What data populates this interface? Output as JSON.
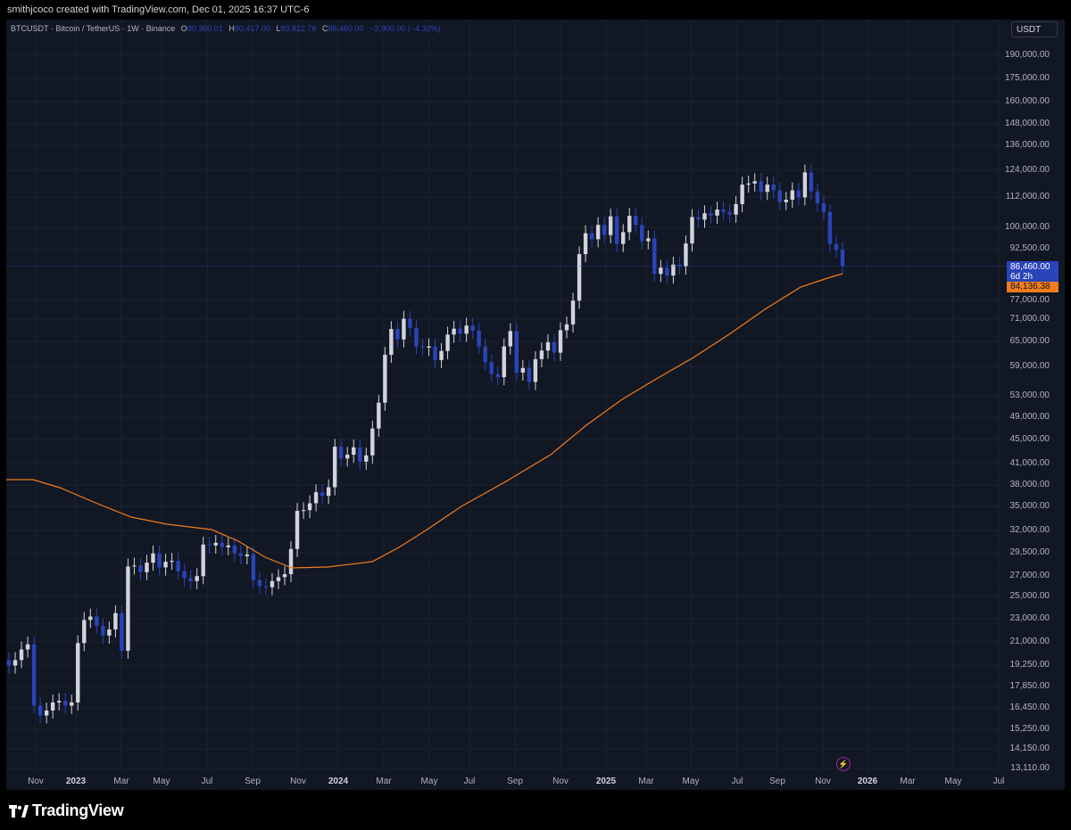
{
  "credit": "smithjcoco created with TradingView.com, Dec 01, 2025 16:37 UTC-6",
  "legend": {
    "symbol": "BTCUSDT · Bitcoin / TetherUS · 1W · Binance",
    "o_label": "O",
    "o_value": "90,360.01",
    "h_label": "H",
    "h_value": "90,417.00",
    "l_label": "L",
    "l_value": "83,822.76",
    "c_label": "C",
    "c_value": "86,460.00",
    "change": "−3,900.00 (−4.32%)"
  },
  "currency": "USDT",
  "price_axis": [
    "190,000.00",
    "175,000.00",
    "160,000.00",
    "148,000.00",
    "136,000.00",
    "124,000.00",
    "112,000.00",
    "100,000.00",
    "92,500.00",
    "77,000.00",
    "71,000.00",
    "65,000.00",
    "59,000.00",
    "53,000.00",
    "49,000.00",
    "45,000.00",
    "41,000.00",
    "38,000.00",
    "35,000.00",
    "32,000.00",
    "29,500.00",
    "27,000.00",
    "25,000.00",
    "23,000.00",
    "21,000.00",
    "19,250.00",
    "17,850.00",
    "16,450.00",
    "15,250.00",
    "14,150.00",
    "13,110.00"
  ],
  "last_price": {
    "value": "86,460.00",
    "countdown": "6d 2h"
  },
  "ma_price": "84,136.38",
  "time_axis": [
    {
      "label": "Nov",
      "bold": false
    },
    {
      "label": "2023",
      "bold": true
    },
    {
      "label": "Mar",
      "bold": false
    },
    {
      "label": "May",
      "bold": false
    },
    {
      "label": "Jul",
      "bold": false
    },
    {
      "label": "Sep",
      "bold": false
    },
    {
      "label": "Nov",
      "bold": false
    },
    {
      "label": "2024",
      "bold": true
    },
    {
      "label": "Mar",
      "bold": false
    },
    {
      "label": "May",
      "bold": false
    },
    {
      "label": "Jul",
      "bold": false
    },
    {
      "label": "Sep",
      "bold": false
    },
    {
      "label": "Nov",
      "bold": false
    },
    {
      "label": "2025",
      "bold": true
    },
    {
      "label": "Mar",
      "bold": false
    },
    {
      "label": "May",
      "bold": false
    },
    {
      "label": "Jul",
      "bold": false
    },
    {
      "label": "Sep",
      "bold": false
    },
    {
      "label": "Nov",
      "bold": false
    },
    {
      "label": "2026",
      "bold": true
    },
    {
      "label": "Mar",
      "bold": false
    },
    {
      "label": "May",
      "bold": false
    },
    {
      "label": "Jul",
      "bold": false
    }
  ],
  "colors": {
    "up": "#d1d4dc",
    "down": "#2a44b9",
    "ma": "#f07d1c",
    "bg": "#121724"
  },
  "brand": "TradingView",
  "chart_data": {
    "type": "candlestick",
    "scale": "log",
    "ylim": [
      13110,
      190000
    ],
    "weekly_closes": [
      19300,
      19700,
      20500,
      20900,
      16600,
      16000,
      16300,
      16800,
      16900,
      16600,
      16800,
      21000,
      22900,
      23200,
      22400,
      21600,
      22100,
      23500,
      20400,
      28000,
      28100,
      27400,
      28400,
      29400,
      27900,
      28500,
      28600,
      27500,
      26800,
      26500,
      27000,
      30400,
      30300,
      30600,
      30100,
      30300,
      29400,
      29100,
      29300,
      26600,
      26000,
      25900,
      26500,
      26900,
      27200,
      29900,
      34500,
      34600,
      35500,
      37000,
      36500,
      37700,
      43900,
      42000,
      42600,
      43800,
      41500,
      42500,
      47000,
      51800,
      62000,
      68300,
      65700,
      71000,
      68600,
      64000,
      63700,
      64000,
      60800,
      62900,
      66900,
      68400,
      67100,
      69200,
      67900,
      64000,
      60300,
      57700,
      57000,
      64000,
      67800,
      58000,
      59000,
      56000,
      61000,
      63000,
      65000,
      62500,
      68000,
      69500,
      76000,
      90500,
      97900,
      95700,
      101000,
      97200,
      104300,
      94000,
      98300,
      104500,
      101000,
      95000,
      96000,
      84000,
      86000,
      83500,
      87000,
      86400,
      94200,
      104000,
      103000,
      105500,
      104600,
      107000,
      106000,
      105000,
      109200,
      117500,
      118000,
      119000,
      114300,
      117500,
      115000,
      110000,
      111000,
      115000,
      112000,
      123000,
      114500,
      109500,
      106000,
      94000,
      92000,
      86460
    ],
    "ma_last": 84136.38
  }
}
